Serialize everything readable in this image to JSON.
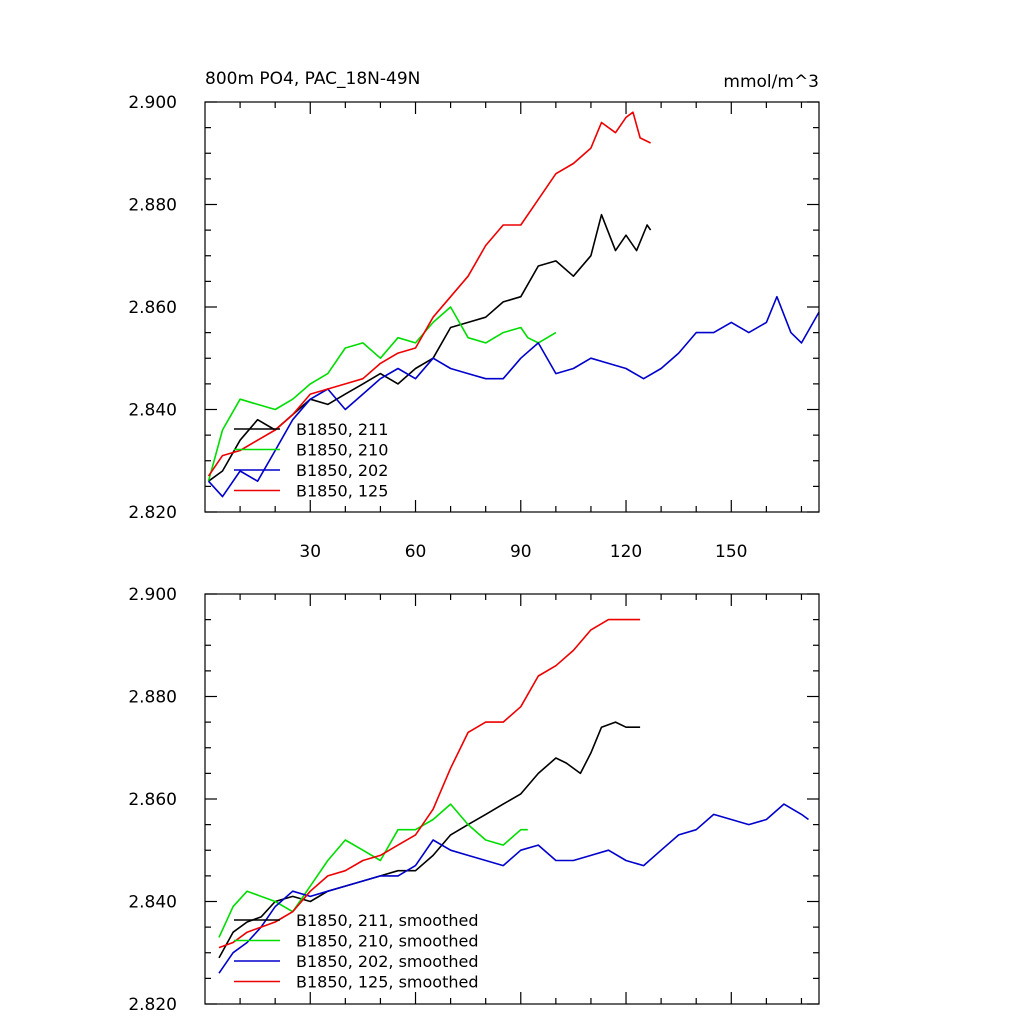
{
  "chart_data": [
    {
      "type": "line",
      "title": "800m PO4, PAC_18N-49N",
      "units": "mmol/m^3",
      "xlim": [
        0,
        175
      ],
      "ylim": [
        2.82,
        2.9
      ],
      "x_ticks": [
        30,
        60,
        90,
        120,
        150
      ],
      "x_tick_labels": [
        "30",
        "60",
        "90",
        "120",
        "150"
      ],
      "y_ticks": [
        2.82,
        2.84,
        2.86,
        2.88,
        2.9
      ],
      "y_tick_labels": [
        "2.820",
        "2.840",
        "2.860",
        "2.880",
        "2.900"
      ],
      "legend_position": "bottom-left",
      "series": [
        {
          "name": "B1850, 211",
          "color": "#000000",
          "x": [
            1,
            5,
            10,
            15,
            20,
            25,
            30,
            35,
            40,
            45,
            50,
            55,
            60,
            65,
            70,
            75,
            80,
            85,
            90,
            95,
            100,
            105,
            110,
            113,
            117,
            120,
            123,
            126,
            127
          ],
          "y": [
            2.826,
            2.828,
            2.834,
            2.838,
            2.836,
            2.839,
            2.842,
            2.841,
            2.843,
            2.845,
            2.847,
            2.845,
            2.848,
            2.85,
            2.856,
            2.857,
            2.858,
            2.861,
            2.862,
            2.868,
            2.869,
            2.866,
            2.87,
            2.878,
            2.871,
            2.874,
            2.871,
            2.876,
            2.875
          ]
        },
        {
          "name": "B1850, 210",
          "color": "#00dd00",
          "x": [
            1,
            5,
            10,
            15,
            20,
            25,
            30,
            35,
            40,
            45,
            50,
            55,
            60,
            65,
            70,
            75,
            80,
            85,
            90,
            92,
            95,
            100
          ],
          "y": [
            2.826,
            2.836,
            2.842,
            2.841,
            2.84,
            2.842,
            2.845,
            2.847,
            2.852,
            2.853,
            2.85,
            2.854,
            2.853,
            2.857,
            2.86,
            2.854,
            2.853,
            2.855,
            2.856,
            2.854,
            2.853,
            2.855
          ]
        },
        {
          "name": "B1850, 202",
          "color": "#0000cc",
          "x": [
            1,
            5,
            10,
            15,
            20,
            25,
            30,
            35,
            40,
            45,
            50,
            55,
            60,
            65,
            70,
            75,
            80,
            85,
            90,
            95,
            100,
            105,
            110,
            115,
            120,
            125,
            130,
            135,
            140,
            145,
            150,
            155,
            160,
            163,
            167,
            170,
            175
          ],
          "y": [
            2.826,
            2.823,
            2.828,
            2.826,
            2.832,
            2.838,
            2.842,
            2.844,
            2.84,
            2.843,
            2.846,
            2.848,
            2.846,
            2.85,
            2.848,
            2.847,
            2.846,
            2.846,
            2.85,
            2.853,
            2.847,
            2.848,
            2.85,
            2.849,
            2.848,
            2.846,
            2.848,
            2.851,
            2.855,
            2.855,
            2.857,
            2.855,
            2.857,
            2.862,
            2.855,
            2.853,
            2.859
          ]
        },
        {
          "name": "B1850, 125",
          "color": "#ee0000",
          "x": [
            1,
            5,
            10,
            15,
            20,
            25,
            30,
            35,
            40,
            45,
            50,
            55,
            60,
            65,
            70,
            75,
            80,
            85,
            90,
            95,
            100,
            105,
            110,
            113,
            117,
            120,
            122,
            124,
            127
          ],
          "y": [
            2.827,
            2.831,
            2.832,
            2.834,
            2.836,
            2.839,
            2.843,
            2.844,
            2.845,
            2.846,
            2.849,
            2.851,
            2.852,
            2.858,
            2.862,
            2.866,
            2.872,
            2.876,
            2.876,
            2.881,
            2.886,
            2.888,
            2.891,
            2.896,
            2.894,
            2.897,
            2.898,
            2.893,
            2.892
          ]
        }
      ]
    },
    {
      "type": "line",
      "xlim": [
        0,
        175
      ],
      "ylim": [
        2.82,
        2.9
      ],
      "x_ticks": [
        30,
        60,
        90,
        120,
        150
      ],
      "y_ticks": [
        2.82,
        2.84,
        2.86,
        2.88,
        2.9
      ],
      "y_tick_labels": [
        "2.820",
        "2.840",
        "2.860",
        "2.880",
        "2.900"
      ],
      "legend_position": "bottom-left",
      "series": [
        {
          "name": "B1850, 211, smoothed",
          "color": "#000000",
          "x": [
            4,
            8,
            12,
            16,
            20,
            25,
            30,
            35,
            40,
            45,
            50,
            55,
            60,
            65,
            70,
            75,
            80,
            85,
            90,
            95,
            100,
            103,
            107,
            110,
            113,
            117,
            120,
            124
          ],
          "y": [
            2.829,
            2.834,
            2.836,
            2.837,
            2.84,
            2.841,
            2.84,
            2.842,
            2.843,
            2.844,
            2.845,
            2.846,
            2.846,
            2.849,
            2.853,
            2.855,
            2.857,
            2.859,
            2.861,
            2.865,
            2.868,
            2.867,
            2.865,
            2.869,
            2.874,
            2.875,
            2.874,
            2.874
          ]
        },
        {
          "name": "B1850, 210, smoothed",
          "color": "#00dd00",
          "x": [
            4,
            8,
            12,
            16,
            20,
            25,
            30,
            35,
            40,
            45,
            50,
            55,
            60,
            65,
            70,
            75,
            80,
            85,
            90,
            92
          ],
          "y": [
            2.833,
            2.839,
            2.842,
            2.841,
            2.84,
            2.838,
            2.843,
            2.848,
            2.852,
            2.85,
            2.848,
            2.854,
            2.854,
            2.856,
            2.859,
            2.855,
            2.852,
            2.851,
            2.854,
            2.854
          ]
        },
        {
          "name": "B1850, 202, smoothed",
          "color": "#0000cc",
          "x": [
            4,
            8,
            12,
            16,
            20,
            25,
            30,
            35,
            40,
            45,
            50,
            55,
            60,
            65,
            70,
            75,
            80,
            85,
            90,
            95,
            100,
            105,
            110,
            115,
            120,
            125,
            130,
            135,
            140,
            145,
            150,
            155,
            160,
            165,
            170,
            172
          ],
          "y": [
            2.826,
            2.83,
            2.832,
            2.835,
            2.839,
            2.842,
            2.841,
            2.842,
            2.843,
            2.844,
            2.845,
            2.845,
            2.847,
            2.852,
            2.85,
            2.849,
            2.848,
            2.847,
            2.85,
            2.851,
            2.848,
            2.848,
            2.849,
            2.85,
            2.848,
            2.847,
            2.85,
            2.853,
            2.854,
            2.857,
            2.856,
            2.855,
            2.856,
            2.859,
            2.857,
            2.856
          ]
        },
        {
          "name": "B1850, 125, smoothed",
          "color": "#ee0000",
          "x": [
            4,
            8,
            12,
            16,
            20,
            25,
            30,
            35,
            40,
            45,
            50,
            55,
            60,
            65,
            70,
            75,
            80,
            85,
            90,
            95,
            100,
            105,
            110,
            115,
            118,
            121,
            124
          ],
          "y": [
            2.831,
            2.832,
            2.834,
            2.835,
            2.836,
            2.838,
            2.842,
            2.845,
            2.846,
            2.848,
            2.849,
            2.851,
            2.853,
            2.858,
            2.866,
            2.873,
            2.875,
            2.875,
            2.878,
            2.884,
            2.886,
            2.889,
            2.893,
            2.895,
            2.895,
            2.895,
            2.895
          ]
        }
      ]
    }
  ]
}
